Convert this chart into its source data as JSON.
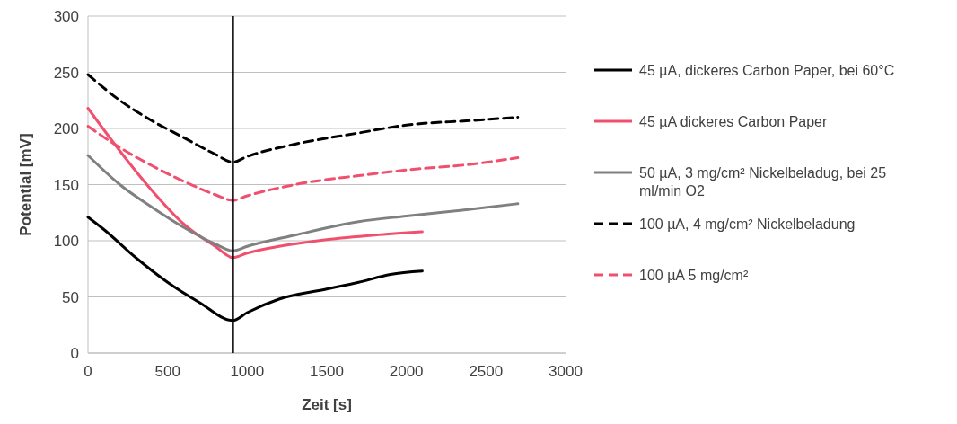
{
  "chart_data": {
    "type": "line",
    "xlabel": "Zeit [s]",
    "ylabel": "Potential [mV]",
    "xlim": [
      0,
      3000
    ],
    "xticks": [
      0,
      500,
      1000,
      1500,
      2000,
      2500,
      3000
    ],
    "ylim": [
      0,
      300
    ],
    "yticks": [
      0,
      50,
      100,
      150,
      200,
      250,
      300
    ],
    "grid": "y",
    "legend": "right",
    "marker": "none",
    "ref_lines": [
      {
        "axis": "x",
        "value": 910,
        "color": "#000000"
      }
    ],
    "series": [
      {
        "name": "45 µA, dickeres Carbon Paper, bei 60°C",
        "color": "#000000",
        "line_style": "solid",
        "x": [
          0,
          100,
          300,
          500,
          700,
          910,
          1000,
          1200,
          1500,
          1700,
          1900,
          2100
        ],
        "values": [
          121,
          110,
          85,
          63,
          45,
          29,
          36,
          48,
          57,
          63,
          70,
          73
        ]
      },
      {
        "name": "45 µA dickeres Carbon Paper",
        "color": "#f0506e",
        "line_style": "solid",
        "x": [
          0,
          200,
          400,
          600,
          800,
          910,
          1000,
          1200,
          1500,
          1800,
          2100
        ],
        "values": [
          218,
          180,
          145,
          115,
          95,
          85,
          89,
          95,
          101,
          105,
          108
        ]
      },
      {
        "name": "50 µA, 3 mg/cm² Nickelbeladug, bei 25 ml/min O2",
        "color": "#808080",
        "line_style": "solid",
        "x": [
          0,
          200,
          400,
          600,
          800,
          910,
          1000,
          1300,
          1700,
          2000,
          2400,
          2700
        ],
        "values": [
          176,
          150,
          130,
          112,
          97,
          91,
          95,
          105,
          117,
          122,
          128,
          133
        ]
      },
      {
        "name": "100 µA, 4 mg/cm² Nickelbeladung",
        "color": "#000000",
        "line_style": "dashed",
        "x": [
          0,
          200,
          400,
          600,
          800,
          910,
          1000,
          1300,
          1700,
          2000,
          2400,
          2700
        ],
        "values": [
          248,
          225,
          207,
          192,
          177,
          170,
          175,
          186,
          196,
          203,
          207,
          210
        ]
      },
      {
        "name": "100 µA 5 mg/cm²",
        "color": "#f0506e",
        "line_style": "dashed",
        "x": [
          0,
          200,
          400,
          600,
          800,
          910,
          1000,
          1300,
          1700,
          2000,
          2400,
          2700
        ],
        "values": [
          202,
          183,
          167,
          153,
          141,
          136,
          140,
          150,
          158,
          163,
          168,
          174
        ]
      }
    ]
  }
}
